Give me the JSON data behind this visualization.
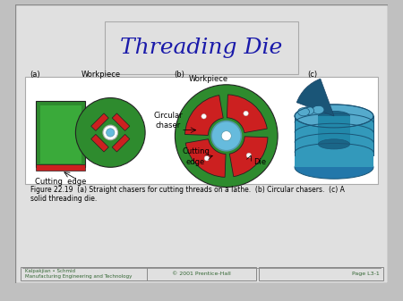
{
  "title": "Threading Die",
  "title_color": "#1a1aaa",
  "title_fontsize": 18,
  "bg_color": "#c0c0c0",
  "slide_bg": "#e0e0e0",
  "figure_caption": "Figure 22.19  (a) Straight chasers for cutting threads on a lathe.  (b) Circular chasers.  (c) A\nsolid threading die.",
  "footer_left": "Kalpakjian • Schmid\nManufacturing Engineering and Technology",
  "footer_center": "© 2001 Prentice-Hall",
  "footer_right": "Page L3-1",
  "label_a": "(a)",
  "label_b": "(b)",
  "label_c": "(c)",
  "label_workpiece_a": "Workpiece",
  "label_workpiece_b": "Workpiece",
  "label_cutting_edge_a": "Cutting  edge",
  "label_circular_chaser": "Circular\nchaser",
  "label_cutting_edge_b": "Cutting\nedge",
  "label_die": "Die",
  "green_color": "#2e8b2e",
  "red_color": "#cc2020",
  "teal_blue": "#3399bb",
  "light_blue": "#66bbdd",
  "sky_blue": "#55aacc"
}
